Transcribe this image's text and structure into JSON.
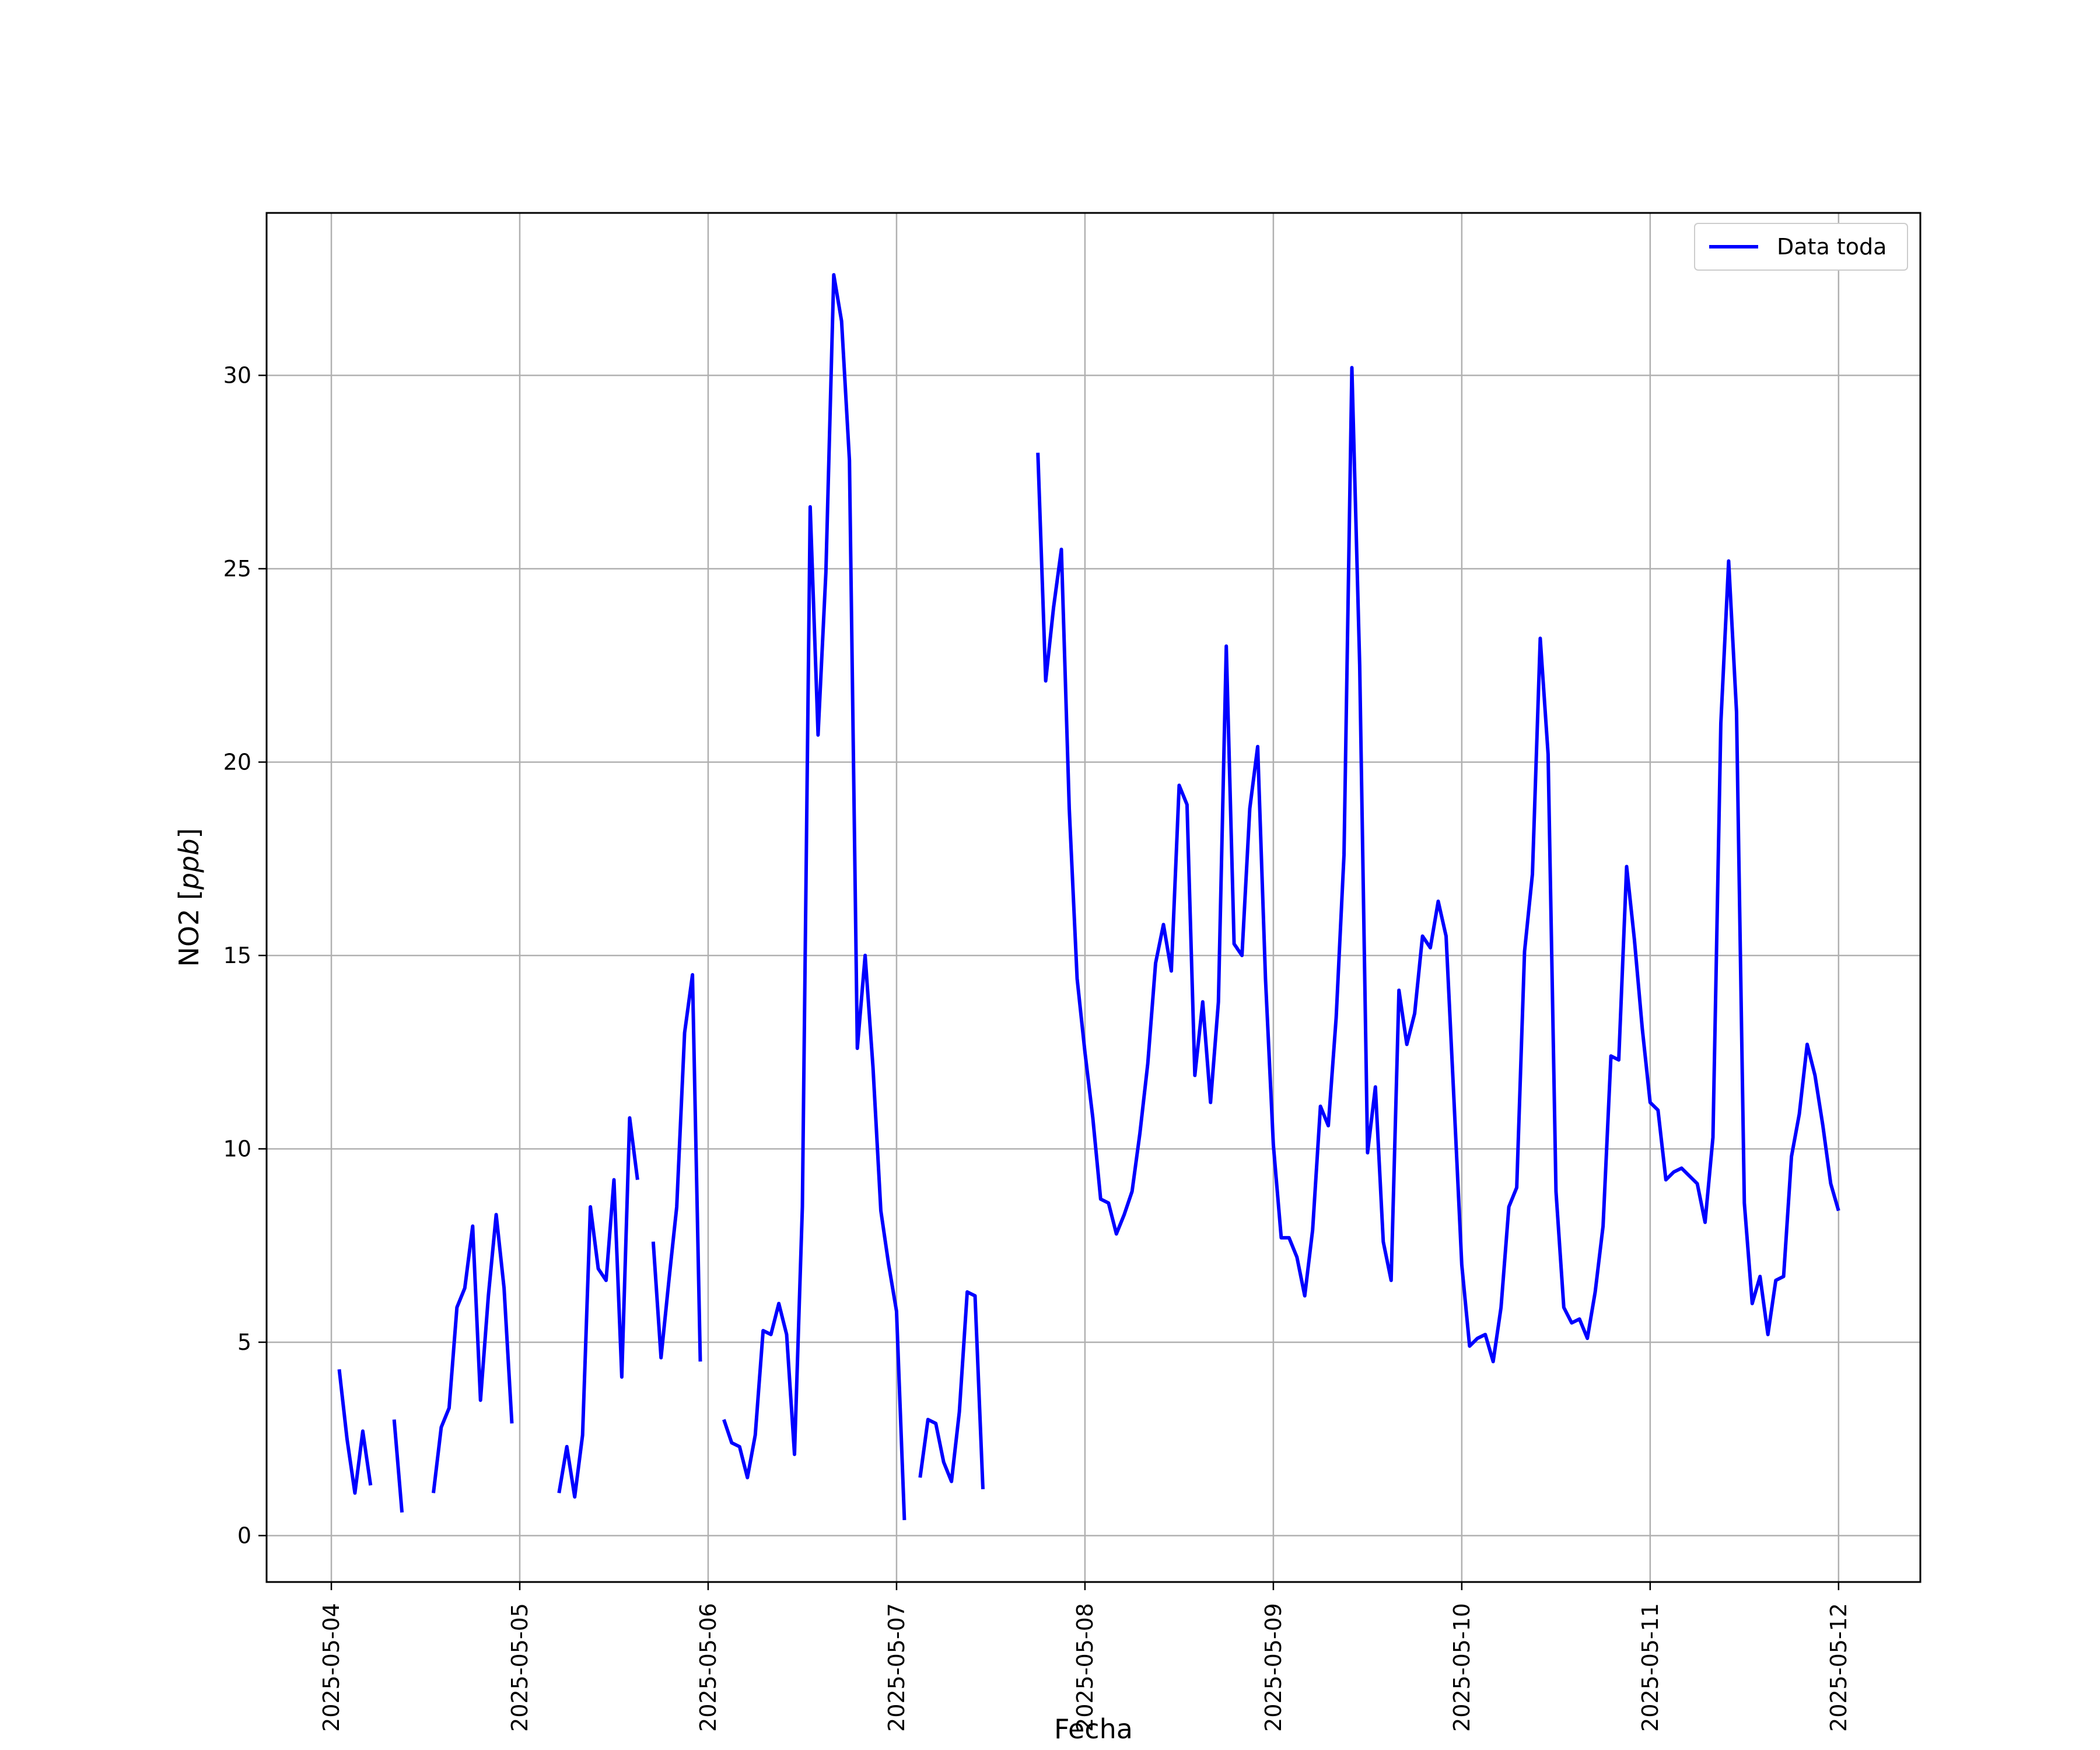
{
  "chart_data": {
    "type": "line",
    "xlabel": "Fecha",
    "ylabel": "NO2 [ppb]",
    "ylabel_main": "NO2 [",
    "ylabel_unit": "ppb",
    "ylabel_close": "]",
    "xlim": [
      "2025-05-03T15:45",
      "2025-05-12T10:25"
    ],
    "ylim": [
      -1.2,
      34.2
    ],
    "grid": true,
    "legend_position": "top-right",
    "x_ticks": [
      "2025-05-04",
      "2025-05-05",
      "2025-05-06",
      "2025-05-07",
      "2025-05-08",
      "2025-05-09",
      "2025-05-10",
      "2025-05-11",
      "2025-05-12"
    ],
    "y_ticks": [
      0,
      5,
      10,
      15,
      20,
      25,
      30
    ],
    "colors": {
      "line": "#0000ff",
      "grid": "#b0b0b0",
      "axes": "#000000"
    },
    "series": [
      {
        "name": "Data toda",
        "x": [
          "2025-05-04T01:00",
          "2025-05-04T02:00",
          "2025-05-04T03:00",
          "2025-05-04T04:00",
          "2025-05-04T05:00",
          null,
          "2025-05-04T08:00",
          "2025-05-04T09:00",
          null,
          "2025-05-04T13:00",
          "2025-05-04T14:00",
          "2025-05-04T15:00",
          "2025-05-04T16:00",
          "2025-05-04T17:00",
          "2025-05-04T18:00",
          "2025-05-04T19:00",
          "2025-05-04T20:00",
          "2025-05-04T21:00",
          "2025-05-04T22:00",
          "2025-05-04T23:00",
          null,
          "2025-05-05T05:00",
          "2025-05-05T06:00",
          "2025-05-05T07:00",
          "2025-05-05T08:00",
          "2025-05-05T09:00",
          "2025-05-05T10:00",
          "2025-05-05T11:00",
          "2025-05-05T12:00",
          "2025-05-05T13:00",
          "2025-05-05T14:00",
          "2025-05-05T15:00",
          null,
          "2025-05-05T17:00",
          "2025-05-05T18:00",
          "2025-05-05T19:00",
          "2025-05-05T20:00",
          "2025-05-05T21:00",
          "2025-05-05T22:00",
          "2025-05-05T23:00",
          null,
          "2025-05-06T02:00",
          "2025-05-06T03:00",
          "2025-05-06T04:00",
          "2025-05-06T05:00",
          "2025-05-06T06:00",
          "2025-05-06T07:00",
          "2025-05-06T08:00",
          "2025-05-06T09:00",
          "2025-05-06T10:00",
          "2025-05-06T11:00",
          "2025-05-06T12:00",
          "2025-05-06T13:00",
          "2025-05-06T14:00",
          "2025-05-06T15:00",
          "2025-05-06T16:00",
          "2025-05-06T17:00",
          "2025-05-06T18:00",
          "2025-05-06T19:00",
          "2025-05-06T20:00",
          "2025-05-06T21:00",
          "2025-05-06T22:00",
          "2025-05-06T23:00",
          "2025-05-07T00:00",
          "2025-05-07T01:00",
          null,
          "2025-05-07T03:00",
          "2025-05-07T04:00",
          "2025-05-07T05:00",
          "2025-05-07T06:00",
          "2025-05-07T07:00",
          "2025-05-07T08:00",
          "2025-05-07T09:00",
          "2025-05-07T10:00",
          "2025-05-07T11:00",
          null,
          "2025-05-07T18:00",
          "2025-05-07T19:00",
          "2025-05-07T20:00",
          "2025-05-07T21:00",
          "2025-05-07T22:00",
          "2025-05-07T23:00",
          "2025-05-08T00:00",
          "2025-05-08T01:00",
          "2025-05-08T02:00",
          "2025-05-08T03:00",
          "2025-05-08T04:00",
          "2025-05-08T05:00",
          "2025-05-08T06:00",
          "2025-05-08T07:00",
          "2025-05-08T08:00",
          "2025-05-08T09:00",
          "2025-05-08T10:00",
          "2025-05-08T11:00",
          "2025-05-08T12:00",
          "2025-05-08T13:00",
          "2025-05-08T14:00",
          "2025-05-08T15:00",
          "2025-05-08T16:00",
          "2025-05-08T17:00",
          "2025-05-08T18:00",
          "2025-05-08T19:00",
          "2025-05-08T20:00",
          "2025-05-08T21:00",
          "2025-05-08T22:00",
          "2025-05-08T23:00",
          "2025-05-09T00:00",
          "2025-05-09T01:00",
          "2025-05-09T02:00",
          "2025-05-09T03:00",
          "2025-05-09T04:00",
          "2025-05-09T05:00",
          "2025-05-09T06:00",
          "2025-05-09T07:00",
          "2025-05-09T08:00",
          "2025-05-09T09:00",
          "2025-05-09T10:00",
          "2025-05-09T11:00",
          "2025-05-09T12:00",
          "2025-05-09T13:00",
          "2025-05-09T14:00",
          "2025-05-09T15:00",
          "2025-05-09T16:00",
          "2025-05-09T17:00",
          "2025-05-09T18:00",
          "2025-05-09T19:00",
          "2025-05-09T20:00",
          "2025-05-09T21:00",
          "2025-05-09T22:00",
          "2025-05-09T23:00",
          "2025-05-10T00:00",
          "2025-05-10T01:00",
          "2025-05-10T02:00",
          "2025-05-10T03:00",
          "2025-05-10T04:00",
          "2025-05-10T05:00",
          "2025-05-10T06:00",
          "2025-05-10T07:00",
          "2025-05-10T08:00",
          "2025-05-10T09:00",
          "2025-05-10T10:00",
          "2025-05-10T11:00",
          "2025-05-10T12:00",
          "2025-05-10T13:00",
          "2025-05-10T14:00",
          "2025-05-10T15:00",
          "2025-05-10T16:00",
          "2025-05-10T17:00",
          "2025-05-10T18:00",
          "2025-05-10T19:00",
          "2025-05-10T20:00",
          "2025-05-10T21:00",
          "2025-05-10T22:00",
          "2025-05-10T23:00",
          "2025-05-11T00:00",
          "2025-05-11T01:00",
          "2025-05-11T02:00",
          "2025-05-11T03:00",
          "2025-05-11T04:00",
          "2025-05-11T05:00",
          "2025-05-11T06:00",
          "2025-05-11T07:00",
          "2025-05-11T08:00",
          "2025-05-11T09:00",
          "2025-05-11T10:00",
          "2025-05-11T11:00",
          "2025-05-11T12:00",
          "2025-05-11T13:00",
          "2025-05-11T14:00",
          "2025-05-11T15:00",
          "2025-05-11T16:00",
          "2025-05-11T17:00",
          "2025-05-11T18:00",
          "2025-05-11T19:00",
          "2025-05-11T20:00",
          "2025-05-11T21:00",
          "2025-05-11T22:00",
          "2025-05-11T23:00",
          "2025-05-12T00:00"
        ],
        "y": [
          4.3,
          2.5,
          1.1,
          2.7,
          1.3,
          null,
          3.0,
          0.6,
          null,
          1.1,
          2.8,
          3.3,
          5.9,
          6.4,
          8.0,
          3.5,
          6.2,
          8.3,
          6.4,
          2.9,
          null,
          1.1,
          2.3,
          1.0,
          2.6,
          8.5,
          6.9,
          6.6,
          9.2,
          4.1,
          10.8,
          9.2,
          null,
          7.6,
          4.6,
          6.6,
          8.5,
          13.0,
          14.5,
          4.5,
          null,
          3.0,
          2.4,
          2.3,
          1.5,
          2.6,
          5.3,
          5.2,
          6.0,
          5.2,
          2.1,
          8.5,
          26.6,
          20.7,
          24.9,
          32.6,
          31.4,
          27.8,
          12.6,
          15.0,
          12.1,
          8.4,
          7.0,
          5.8,
          0.4,
          null,
          1.5,
          3.0,
          2.9,
          1.9,
          1.4,
          3.2,
          6.3,
          6.2,
          1.2,
          null,
          28.0,
          22.1,
          24.0,
          25.5,
          18.8,
          14.4,
          12.5,
          10.8,
          8.7,
          8.6,
          7.8,
          8.3,
          8.9,
          10.4,
          12.2,
          14.8,
          15.8,
          14.6,
          19.4,
          18.9,
          11.9,
          13.8,
          11.2,
          13.8,
          23.0,
          15.3,
          15.0,
          18.8,
          20.4,
          14.4,
          10.1,
          7.7,
          7.7,
          7.2,
          6.2,
          7.9,
          11.1,
          10.6,
          13.4,
          17.6,
          30.2,
          22.5,
          9.9,
          11.6,
          7.6,
          6.6,
          14.1,
          12.7,
          13.5,
          15.5,
          15.2,
          16.4,
          15.5,
          11.3,
          7.0,
          4.9,
          5.1,
          5.2,
          4.5,
          5.9,
          8.5,
          9.0,
          15.1,
          17.1,
          23.2,
          20.2,
          8.9,
          5.9,
          5.5,
          5.6,
          5.1,
          6.3,
          8.0,
          12.4,
          12.3,
          17.3,
          15.4,
          13.1,
          11.2,
          11.0,
          9.2,
          9.4,
          9.5,
          9.3,
          9.1,
          8.1,
          10.3,
          21.0,
          25.2,
          21.3,
          8.6,
          6.0,
          6.7,
          5.2,
          6.6,
          6.7,
          9.8,
          10.9,
          12.7,
          11.9,
          10.6,
          9.1,
          8.4
        ]
      }
    ]
  }
}
